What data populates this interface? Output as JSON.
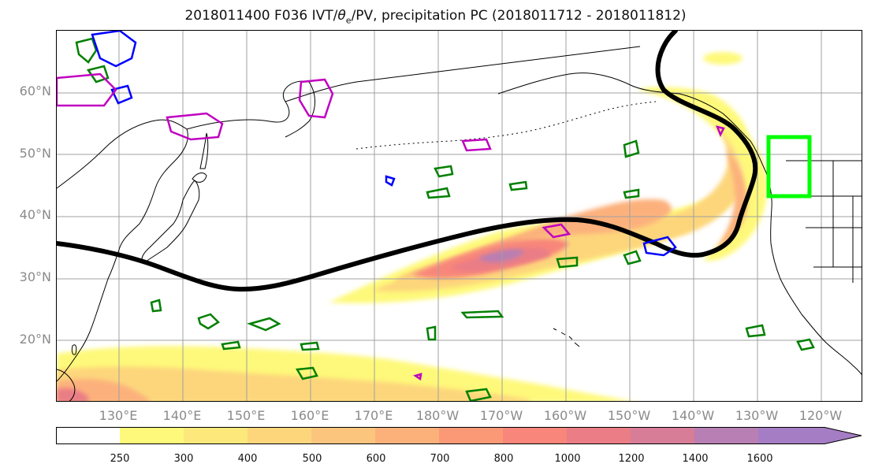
{
  "title": {
    "prefix": "2018011400 F036 IVT/",
    "theta": "θ",
    "theta_sub": "e",
    "suffix": "/PV, precipitation PC (2018011712 - 2018011812)"
  },
  "axes": {
    "lat_labels": [
      "60°N",
      "50°N",
      "40°N",
      "30°N",
      "20°N"
    ],
    "lon_labels": [
      "130°E",
      "140°E",
      "150°E",
      "160°E",
      "170°E",
      "180°W",
      "170°W",
      "160°W",
      "150°W",
      "140°W",
      "130°W",
      "120°W"
    ],
    "grid": true
  },
  "colorbar": {
    "ticks": [
      "250",
      "300",
      "400",
      "500",
      "600",
      "700",
      "800",
      "1000",
      "1200",
      "1400",
      "1600"
    ],
    "colors": [
      "#ffffff",
      "#fef97a",
      "#fde87b",
      "#fdd67c",
      "#fcc57d",
      "#fcb17b",
      "#fb9976",
      "#f8867a",
      "#ea7d86",
      "#d77d98",
      "#b77fb3",
      "#a57dc4"
    ],
    "extend": "max"
  },
  "colors": {
    "theta_contour": "#000000",
    "pv_green": "#008000",
    "pv_blue": "#0000ff",
    "pv_magenta": "#c000c0",
    "box": "#00ff00",
    "coast": "#000000",
    "grid": "#a0a0a0"
  },
  "legend_semantics": {
    "shading": "IVT",
    "thick_line": "theta_e contour",
    "green_blue_magenta_contours": "PV",
    "green_box": "precipitation region"
  }
}
